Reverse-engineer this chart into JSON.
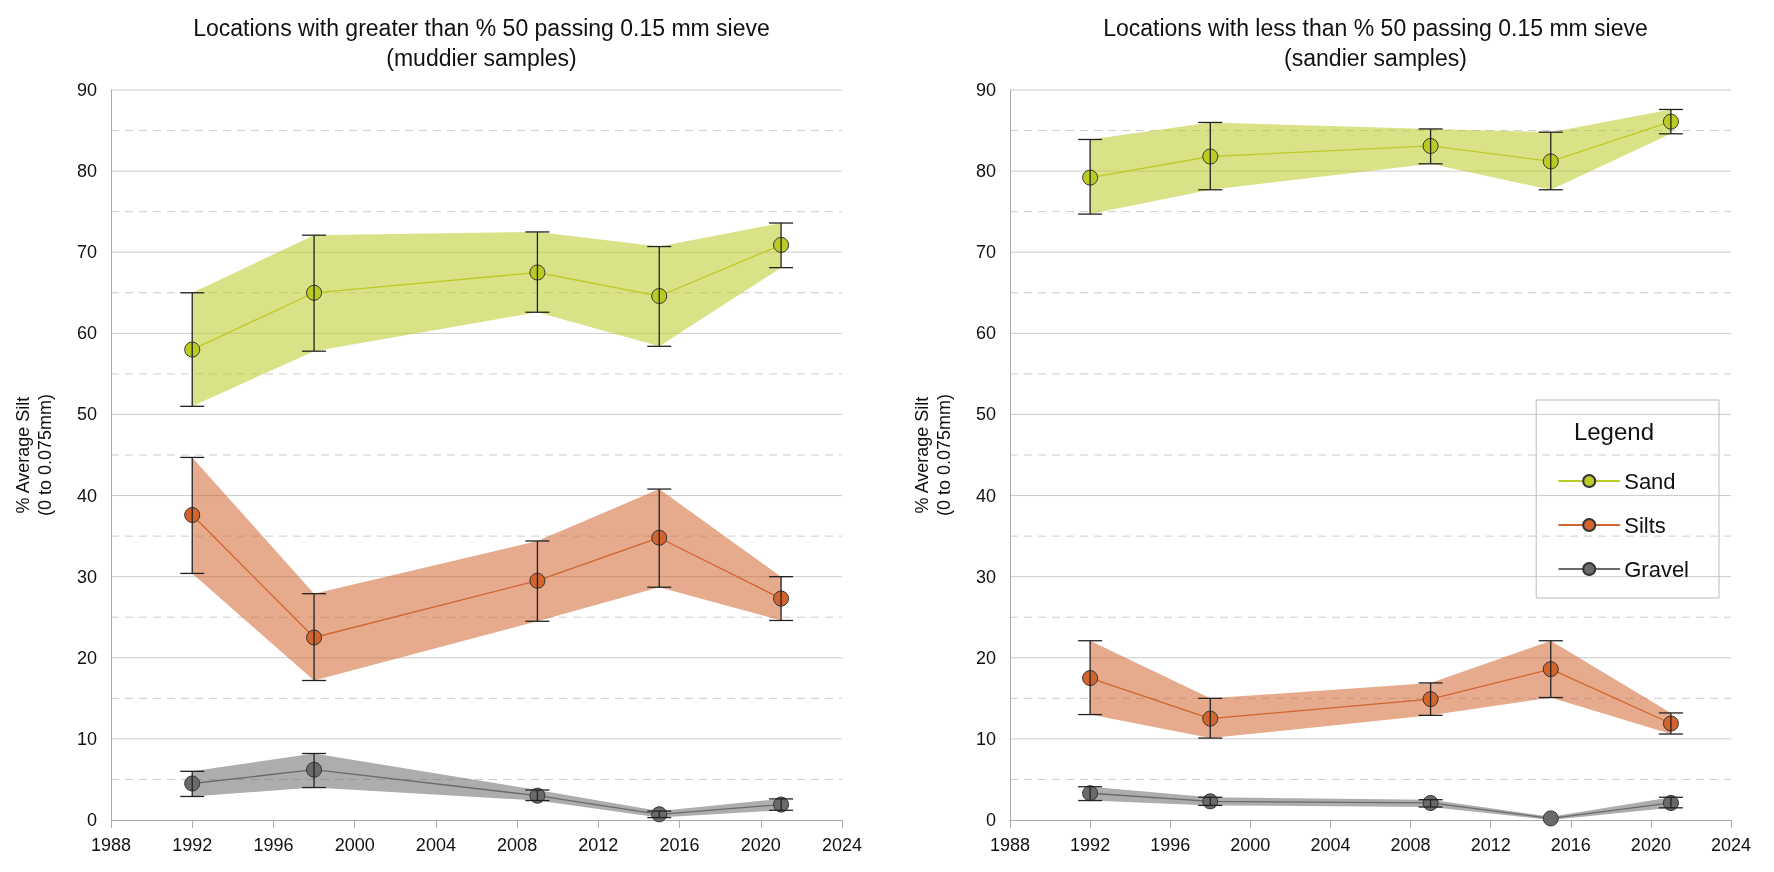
{
  "chart_data": [
    {
      "type": "line",
      "title": "Locations with greater than % 50 passing 0.15 mm sieve\n(muddier samples)",
      "ylabel": "% Average Silt\n(0 to 0.075mm)",
      "x": [
        1992,
        1998,
        2009,
        2015,
        2021
      ],
      "xlim": [
        1988,
        2024
      ],
      "xticks": [
        1988,
        1992,
        1996,
        2000,
        2004,
        2008,
        2012,
        2016,
        2020,
        2024
      ],
      "ylim": [
        0,
        90
      ],
      "yticks": [
        0,
        {
          "value": 5,
          "label": null
        },
        10,
        {
          "value": 15,
          "label": null
        },
        20,
        {
          "value": 25,
          "label": null
        },
        30,
        {
          "value": 35,
          "label": null
        },
        40,
        {
          "value": 45,
          "label": null
        },
        50,
        {
          "value": 55,
          "label": null
        },
        60,
        {
          "value": 65,
          "label": null
        },
        70,
        {
          "value": 75,
          "label": null
        },
        80,
        {
          "value": 85,
          "label": null
        },
        90
      ],
      "grid": "y",
      "legend": false,
      "marker": "circle",
      "line_style": "solid",
      "series": [
        {
          "color": "#bccb24",
          "values": [
            58,
            65,
            67.5,
            64.6,
            70.9
          ],
          "errors": [
            [
              51,
              65
            ],
            [
              57.8,
              72.1
            ],
            [
              62.6,
              72.5
            ],
            [
              58.4,
              70.7
            ],
            [
              68.1,
              73.6
            ]
          ],
          "lower": [
            51,
            57.8,
            62.6,
            58.4,
            68.1
          ],
          "upper": [
            65,
            72.1,
            72.5,
            70.7,
            73.6
          ]
        },
        {
          "color": "#d2642e",
          "values": [
            37.6,
            22.5,
            29.5,
            34.8,
            27.3
          ],
          "errors": [
            [
              30.4,
              44.7
            ],
            [
              17.2,
              27.9
            ],
            [
              24.5,
              34.4
            ],
            [
              28.7,
              40.8
            ],
            [
              24.6,
              30
            ]
          ],
          "lower": [
            30.4,
            17.2,
            24.5,
            28.7,
            24.6
          ],
          "upper": [
            44.7,
            27.9,
            34.4,
            40.8,
            30
          ]
        },
        {
          "color": "#6a6a6a",
          "values": [
            4.5,
            6.2,
            3,
            0.7,
            1.9
          ],
          "errors": [
            [
              2.9,
              6
            ],
            [
              4,
              8.2
            ],
            [
              2.4,
              3.7
            ],
            [
              0.3,
              1.1
            ],
            [
              1.2,
              2.6
            ]
          ],
          "lower": [
            2.9,
            4,
            2.4,
            0.3,
            1.2
          ],
          "upper": [
            6,
            8.2,
            3.7,
            1.1,
            2.6
          ]
        }
      ]
    },
    {
      "type": "line",
      "title": "Locations with less than % 50 passing 0.15 mm sieve\n(sandier samples)",
      "ylabel": "% Average Silt\n(0 to 0.075mm)",
      "x": [
        1992,
        1998,
        2009,
        2015,
        2021
      ],
      "xlim": [
        1988,
        2024
      ],
      "xticks": [
        1988,
        1992,
        1996,
        2000,
        2004,
        2008,
        2012,
        2016,
        2020,
        2024
      ],
      "ylim": [
        0,
        90
      ],
      "yticks": [
        0,
        {
          "value": 5,
          "label": null
        },
        10,
        {
          "value": 15,
          "label": null
        },
        20,
        {
          "value": 25,
          "label": null
        },
        30,
        {
          "value": 35,
          "label": null
        },
        40,
        {
          "value": 45,
          "label": null
        },
        50,
        {
          "value": 55,
          "label": null
        },
        60,
        {
          "value": 65,
          "label": null
        },
        70,
        {
          "value": 75,
          "label": null
        },
        80,
        {
          "value": 85,
          "label": null
        },
        90
      ],
      "grid": "y",
      "legend": "right",
      "legend_title": "Legend",
      "marker": "circle",
      "line_style": "solid",
      "series": [
        {
          "name": "Sand",
          "color": "#bccb24",
          "values": [
            79.2,
            81.8,
            83.1,
            81.2,
            86.1
          ],
          "errors": [
            [
              74.7,
              83.9
            ],
            [
              77.7,
              86
            ],
            [
              80.9,
              85.2
            ],
            [
              77.7,
              84.8
            ],
            [
              84.6,
              87.6
            ]
          ],
          "lower": [
            74.7,
            77.7,
            80.9,
            77.7,
            84.6
          ],
          "upper": [
            83.9,
            86,
            85.2,
            84.8,
            87.6
          ]
        },
        {
          "name": "Silts",
          "color": "#d2642e",
          "values": [
            17.5,
            12.5,
            14.9,
            18.6,
            11.9
          ],
          "errors": [
            [
              13,
              22.1
            ],
            [
              10.1,
              15
            ],
            [
              12.9,
              16.9
            ],
            [
              15.1,
              22.1
            ],
            [
              10.6,
              13.2
            ]
          ],
          "lower": [
            13,
            10.1,
            12.9,
            15.1,
            10.6
          ],
          "upper": [
            22.1,
            15,
            16.9,
            22.1,
            13.2
          ]
        },
        {
          "name": "Gravel",
          "color": "#6a6a6a",
          "values": [
            3.3,
            2.3,
            2.1,
            0.2,
            2.1
          ],
          "errors": [
            [
              2.4,
              4.1
            ],
            [
              1.8,
              2.8
            ],
            [
              1.6,
              2.5
            ],
            null,
            [
              1.5,
              2.8
            ]
          ],
          "lower": [
            2.4,
            1.8,
            1.6,
            0,
            1.5
          ],
          "upper": [
            4.1,
            2.8,
            2.5,
            0.4,
            2.8
          ]
        }
      ]
    }
  ]
}
